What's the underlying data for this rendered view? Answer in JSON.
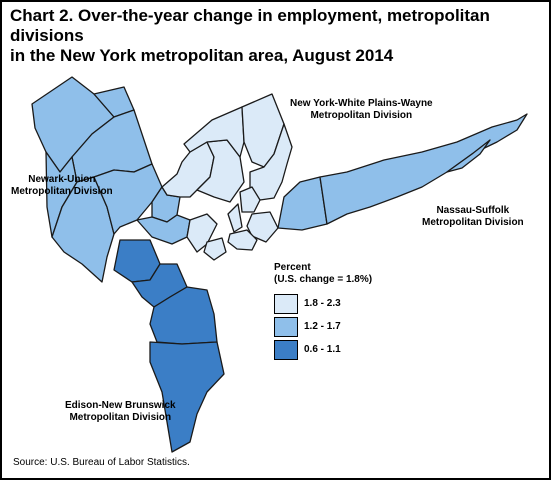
{
  "title": {
    "line1": "Chart 2. Over-the-year change in employment, metropolitan divisions",
    "line2": "in the New York metropolitan area, August 2014"
  },
  "regions": {
    "ny_white_plains": {
      "line1": "New York-White Plains-Wayne",
      "line2": "Metropolitan Division"
    },
    "newark_union": {
      "line1": "Newark-Union",
      "line2": "Metropolitan Division"
    },
    "nassau_suffolk": {
      "line1": "Nassau-Suffolk",
      "line2": "Metropolitan Division"
    },
    "edison_new_brunswick": {
      "line1": "Edison-New Brunswick",
      "line2": "Metropolitan Division"
    }
  },
  "legend": {
    "title_line1": "Percent",
    "title_line2": "(U.S. change = 1.8%)",
    "items": [
      {
        "label": "1.8 - 2.3",
        "color": "#dbeaf8"
      },
      {
        "label": "1.2 - 1.7",
        "color": "#8fbfea"
      },
      {
        "label": "0.6 - 1.1",
        "color": "#3b7ec6"
      }
    ]
  },
  "colors": {
    "light": "#dbeaf8",
    "medium": "#8fbfea",
    "dark": "#3b7ec6",
    "border": "#1a1a1a"
  },
  "source": "Source: U.S. Bureau of Labor Statistics."
}
